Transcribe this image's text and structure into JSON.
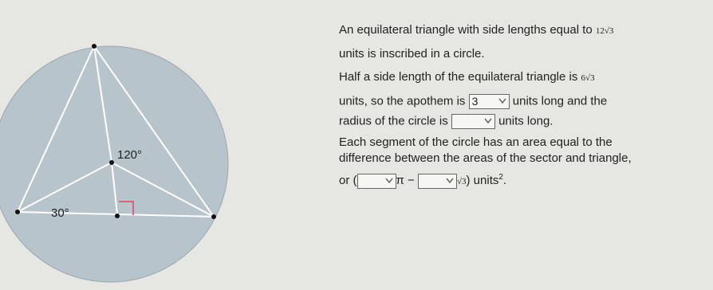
{
  "diagram": {
    "angle_labels": [
      "120°",
      "30°"
    ]
  },
  "problem": {
    "line1": {
      "text": "An equilateral triangle with side lengths equal to",
      "math": "12√3"
    },
    "line2": "units is inscribed in a circle.",
    "line3": {
      "text": "Half a side length of the equilateral triangle is",
      "math": "6√3"
    },
    "line4": {
      "before": "units, so the apothem is",
      "dropdown": "3",
      "after": "units long and the"
    },
    "line5": {
      "before": "radius of the circle is",
      "after": "units long."
    },
    "line6": "Each segment of the circle has an area equal to the",
    "line7": "difference between the areas of the sector and triangle,",
    "line8": {
      "before": "or (",
      "pi": "π −",
      "root": "√3",
      "close": ")",
      "units": "units",
      "exponent": "2",
      "period": "."
    }
  }
}
